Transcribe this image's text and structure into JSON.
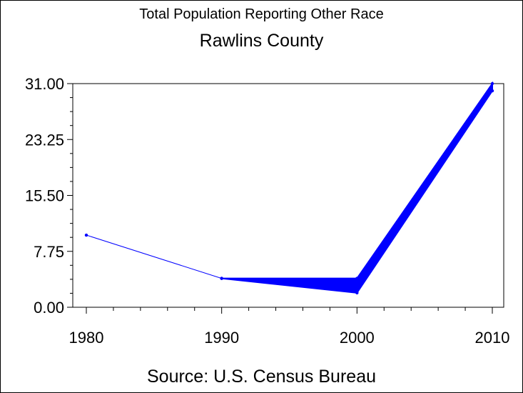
{
  "chart_data": {
    "type": "line",
    "title": "Total Population Reporting Other Race",
    "subtitle": "Rawlins County",
    "footnote": "Source: U.S. Census Bureau",
    "xlabel": "",
    "ylabel": "",
    "x_ticks": [
      "1980",
      "1990",
      "2000",
      "2010"
    ],
    "y_ticks": [
      "0.00",
      "7.75",
      "15.50",
      "23.25",
      "31.00"
    ],
    "xlim": [
      1980,
      2010
    ],
    "ylim": [
      0,
      31
    ],
    "grid": false,
    "series": [
      {
        "color": "#0000ff",
        "points": [
          {
            "x": 1980,
            "y": 10
          },
          {
            "x": 1990,
            "y": 4
          },
          {
            "x": 2000,
            "y": 2
          },
          {
            "x": 2010,
            "y": 31
          }
        ]
      },
      {
        "color": "#0000ff",
        "points": [
          {
            "x": 1990,
            "y": 4
          },
          {
            "x": 2000,
            "y": 4
          },
          {
            "x": 2010,
            "y": 30
          }
        ]
      }
    ]
  }
}
